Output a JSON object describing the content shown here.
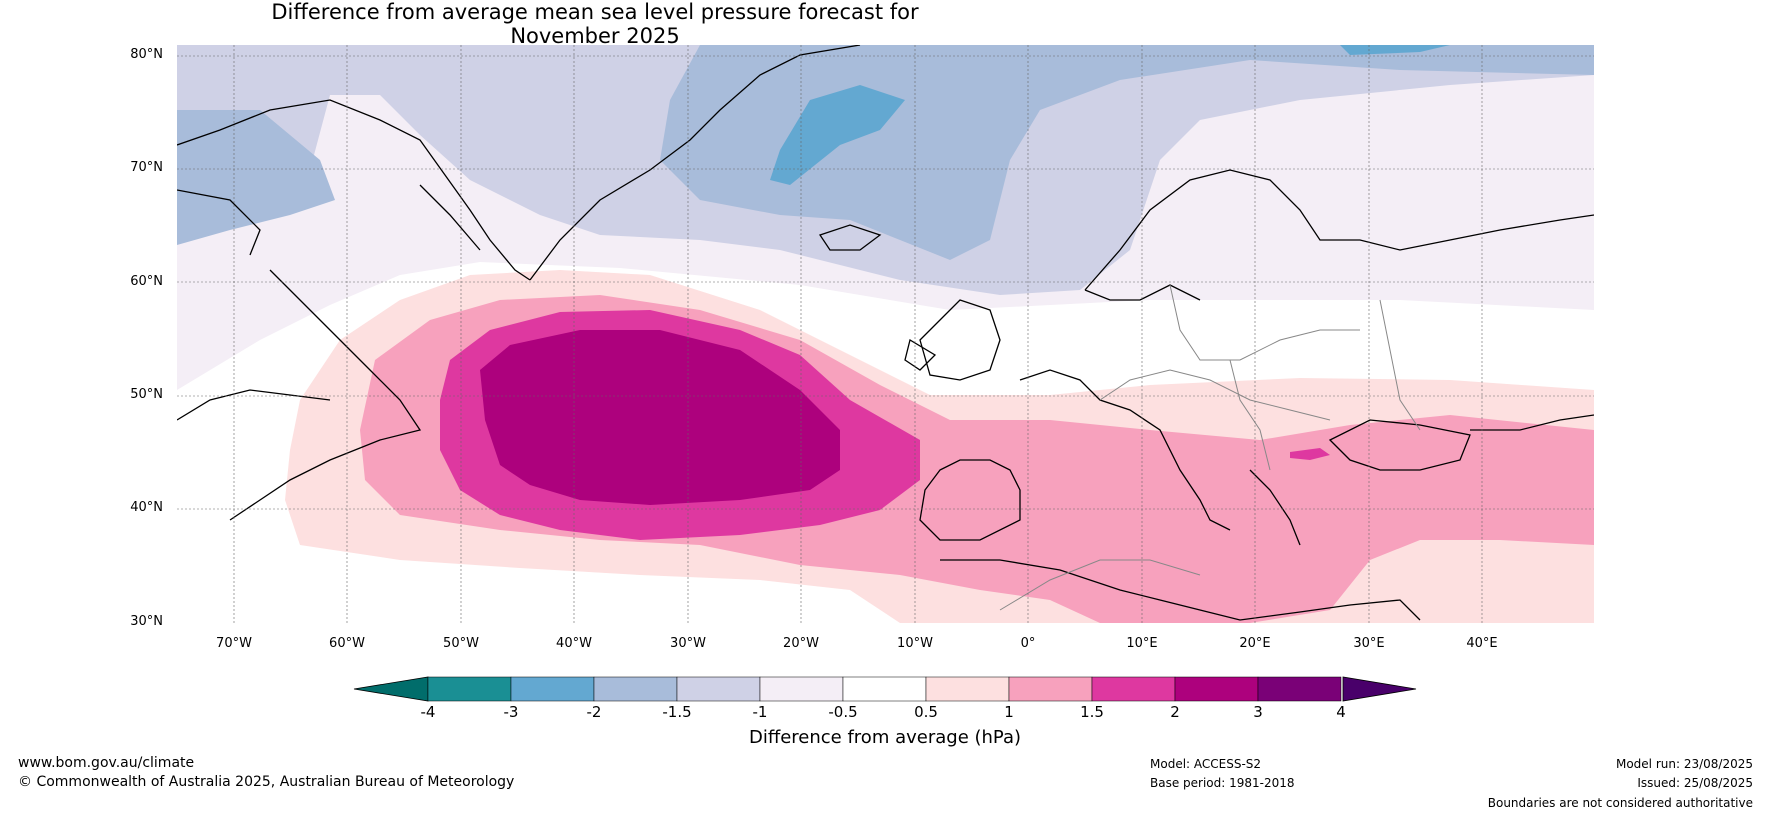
{
  "title_line1": "Difference from average mean sea level pressure forecast for",
  "title_line2": "November 2025",
  "lat_labels": [
    "80°N",
    "70°N",
    "60°N",
    "50°N",
    "40°N",
    "30°N"
  ],
  "lon_labels": [
    "70°W",
    "60°W",
    "50°W",
    "40°W",
    "30°W",
    "20°W",
    "10°W",
    "0°",
    "10°E",
    "20°E",
    "30°E",
    "40°E"
  ],
  "colorbar": {
    "ticks": [
      "-4",
      "-3",
      "-2",
      "-1.5",
      "-1",
      "-0.5",
      "0.5",
      "1",
      "1.5",
      "2",
      "3",
      "4"
    ],
    "colors": [
      "#1a8f94",
      "#63a8d1",
      "#a8bcda",
      "#cfd1e6",
      "#f4eef6",
      "#ffffff",
      "#fde0e0",
      "#f7a1bd",
      "#de38a0",
      "#ad017d",
      "#7a0177"
    ],
    "under_color": "#016d6b",
    "over_color": "#49006a",
    "label": "Difference from average (hPa)"
  },
  "footer": {
    "url": "www.bom.gov.au/climate",
    "copyright": "© Commonwealth of Australia 2025, Australian Bureau of Meteorology",
    "model": "Model: ACCESS-S2",
    "base_period": "Base period: 1981-2018",
    "model_run": "Model run: 23/08/2025",
    "issued": "Issued: 25/08/2025",
    "disclaimer": "Boundaries are not considered authoritative"
  }
}
